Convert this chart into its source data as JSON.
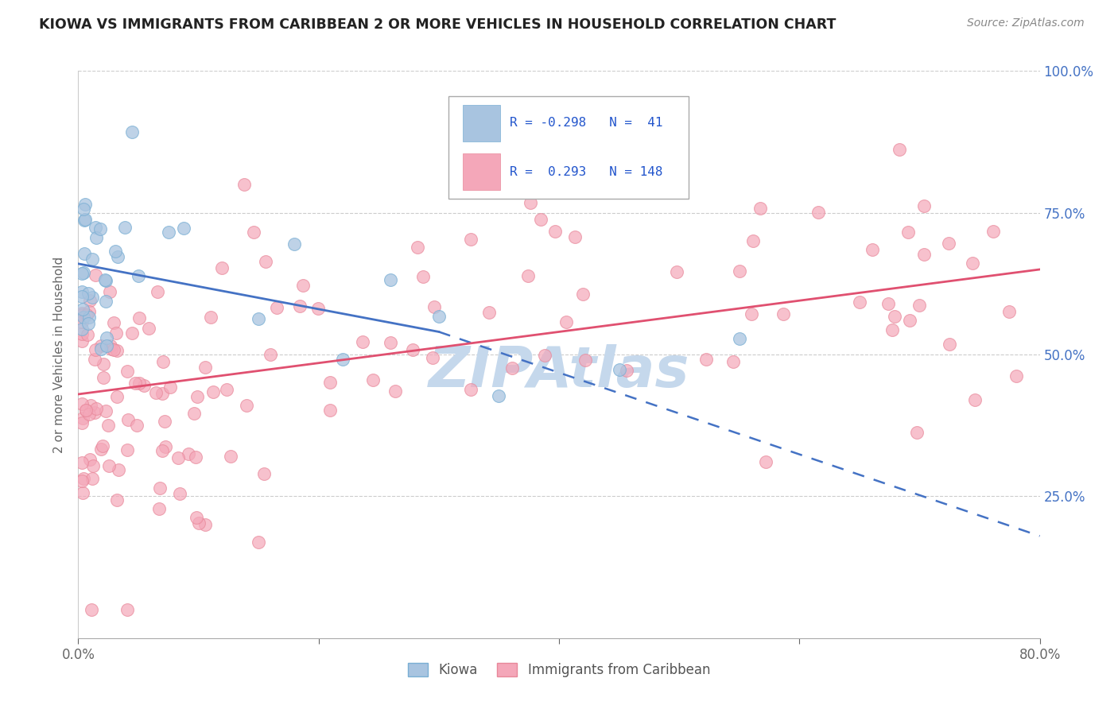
{
  "title": "KIOWA VS IMMIGRANTS FROM CARIBBEAN 2 OR MORE VEHICLES IN HOUSEHOLD CORRELATION CHART",
  "source": "Source: ZipAtlas.com",
  "ylabel": "2 or more Vehicles in Household",
  "x_min": 0.0,
  "x_max": 80.0,
  "y_min": 0.0,
  "y_max": 100.0,
  "kiowa_color": "#a8c4e0",
  "caribbean_color": "#f4a7b9",
  "kiowa_edge": "#7aafd4",
  "caribbean_edge": "#e8889a",
  "trend_blue": "#4472c4",
  "trend_pink": "#e05070",
  "watermark_color": "#c5d8ec",
  "blue_line_x0": 0.0,
  "blue_line_y0": 66.0,
  "blue_line_x1": 30.0,
  "blue_line_y1": 54.0,
  "blue_dash_x0": 30.0,
  "blue_dash_y0": 54.0,
  "blue_dash_x1": 80.0,
  "blue_dash_y1": 18.0,
  "pink_line_x0": 0.0,
  "pink_line_y0": 43.0,
  "pink_line_x1": 80.0,
  "pink_line_y1": 65.0,
  "right_yticks": [
    25.0,
    50.0,
    75.0,
    100.0
  ],
  "right_yticklabels": [
    "25.0%",
    "50.0%",
    "75.0%",
    "100.0%"
  ],
  "legend_r1_val": "-0.298",
  "legend_n1_val": "41",
  "legend_r2_val": "0.293",
  "legend_n2_val": "148"
}
